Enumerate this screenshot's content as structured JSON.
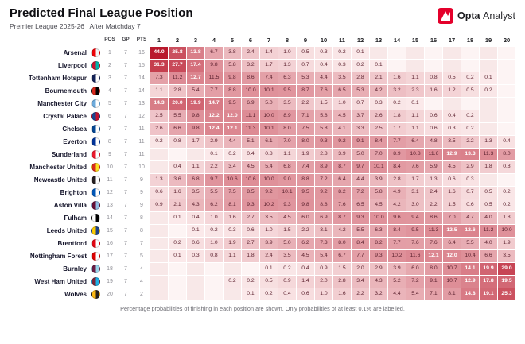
{
  "header": {
    "title": "Predicted Final League Position",
    "subtitle": "Premier League 2025-26 | After Matchday 7",
    "brand": {
      "bold": "Opta",
      "light": "Analyst"
    }
  },
  "footer": {
    "note": "Percentage probabilities of finishing in each position are shown. Only probabilities of at least 0.1% are labelled."
  },
  "colors": {
    "brand_red": "#e4002b",
    "heat_low": "#fdf1f1",
    "heat_high": "#b9192d",
    "stripe_even": "#f8e8e8",
    "stripe_odd": "#fdf4f4"
  },
  "chart_data": {
    "type": "heatmap",
    "title": "Predicted Final League Position",
    "subtitle": "Premier League 2025-26 | After Matchday 7",
    "stat_headers": [
      "POS",
      "GP",
      "PTS"
    ],
    "columns": [
      "1",
      "2",
      "3",
      "4",
      "5",
      "6",
      "7",
      "8",
      "9",
      "10",
      "11",
      "12",
      "13",
      "14",
      "15",
      "16",
      "17",
      "18",
      "19",
      "20"
    ],
    "value_unit": "percent",
    "rows": [
      {
        "team": "Arsenal",
        "pos": "1",
        "gp": "7",
        "pts": "16",
        "crest": [
          "#ef0107",
          "#f5f5f5"
        ],
        "probs": [
          "44.0",
          "25.8",
          "13.8",
          "6.7",
          "3.8",
          "2.4",
          "1.4",
          "1.0",
          "0.5",
          "0.3",
          "0.2",
          "0.1",
          "",
          "",
          "",
          "",
          "",
          "",
          "",
          ""
        ]
      },
      {
        "team": "Liverpool",
        "pos": "2",
        "gp": "7",
        "pts": "15",
        "crest": [
          "#c8102e",
          "#00b2a9"
        ],
        "probs": [
          "31.3",
          "27.7",
          "17.4",
          "9.8",
          "5.8",
          "3.2",
          "1.7",
          "1.3",
          "0.7",
          "0.4",
          "0.3",
          "0.2",
          "0.1",
          "",
          "",
          "",
          "",
          "",
          "",
          ""
        ]
      },
      {
        "team": "Tottenham Hotspur",
        "pos": "3",
        "gp": "7",
        "pts": "14",
        "crest": [
          "#132257",
          "#ffffff"
        ],
        "probs": [
          "7.3",
          "11.2",
          "12.7",
          "11.5",
          "9.8",
          "8.6",
          "7.4",
          "6.3",
          "5.3",
          "4.4",
          "3.5",
          "2.8",
          "2.1",
          "1.6",
          "1.1",
          "0.8",
          "0.5",
          "0.2",
          "0.1",
          ""
        ]
      },
      {
        "team": "Bournemouth",
        "pos": "4",
        "gp": "7",
        "pts": "14",
        "crest": [
          "#da291c",
          "#000000"
        ],
        "probs": [
          "1.1",
          "2.8",
          "5.4",
          "7.7",
          "8.8",
          "10.0",
          "10.1",
          "9.5",
          "8.7",
          "7.6",
          "6.5",
          "5.3",
          "4.2",
          "3.2",
          "2.3",
          "1.6",
          "1.2",
          "0.5",
          "0.2",
          ""
        ]
      },
      {
        "team": "Manchester City",
        "pos": "5",
        "gp": "7",
        "pts": "13",
        "crest": [
          "#6cabdd",
          "#ffffff"
        ],
        "probs": [
          "14.3",
          "20.0",
          "19.9",
          "14.7",
          "9.5",
          "6.9",
          "5.0",
          "3.5",
          "2.2",
          "1.5",
          "1.0",
          "0.7",
          "0.3",
          "0.2",
          "0.1",
          "",
          "",
          "",
          "",
          ""
        ]
      },
      {
        "team": "Crystal Palace",
        "pos": "6",
        "gp": "7",
        "pts": "12",
        "crest": [
          "#1b458f",
          "#c4122e"
        ],
        "probs": [
          "2.5",
          "5.5",
          "9.8",
          "12.2",
          "12.0",
          "11.1",
          "10.0",
          "8.9",
          "7.1",
          "5.8",
          "4.5",
          "3.7",
          "2.6",
          "1.8",
          "1.1",
          "0.6",
          "0.4",
          "0.2",
          "",
          ""
        ]
      },
      {
        "team": "Chelsea",
        "pos": "7",
        "gp": "7",
        "pts": "11",
        "crest": [
          "#034694",
          "#ffffff"
        ],
        "probs": [
          "2.6",
          "6.6",
          "9.8",
          "12.4",
          "12.1",
          "11.3",
          "10.1",
          "8.0",
          "7.5",
          "5.8",
          "4.1",
          "3.3",
          "2.5",
          "1.7",
          "1.1",
          "0.6",
          "0.3",
          "0.2",
          "",
          ""
        ]
      },
      {
        "team": "Everton",
        "pos": "8",
        "gp": "7",
        "pts": "11",
        "crest": [
          "#003399",
          "#ffffff"
        ],
        "probs": [
          "0.2",
          "0.8",
          "1.7",
          "2.9",
          "4.4",
          "5.1",
          "6.1",
          "7.0",
          "8.0",
          "9.3",
          "9.2",
          "9.1",
          "8.4",
          "7.7",
          "6.4",
          "4.8",
          "3.5",
          "2.2",
          "1.3",
          "0.4"
        ]
      },
      {
        "team": "Sunderland",
        "pos": "9",
        "gp": "7",
        "pts": "11",
        "crest": [
          "#eb172b",
          "#ffffff"
        ],
        "probs": [
          "",
          "",
          "",
          "0.1",
          "0.2",
          "0.4",
          "0.8",
          "1.1",
          "1.9",
          "2.8",
          "3.9",
          "5.0",
          "7.0",
          "8.9",
          "10.8",
          "11.6",
          "12.9",
          "13.3",
          "11.3",
          "8.0"
        ]
      },
      {
        "team": "Manchester United",
        "pos": "10",
        "gp": "7",
        "pts": "10",
        "crest": [
          "#da291c",
          "#fbe122"
        ],
        "probs": [
          "",
          "0.4",
          "1.1",
          "2.2",
          "3.4",
          "4.5",
          "5.4",
          "6.8",
          "7.4",
          "8.9",
          "8.7",
          "9.7",
          "10.1",
          "8.4",
          "7.6",
          "5.9",
          "4.5",
          "2.9",
          "1.8",
          "0.8"
        ]
      },
      {
        "team": "Newcastle United",
        "pos": "11",
        "gp": "7",
        "pts": "9",
        "crest": [
          "#241f20",
          "#ffffff"
        ],
        "probs": [
          "1.3",
          "3.6",
          "6.8",
          "9.7",
          "10.6",
          "10.6",
          "10.0",
          "9.0",
          "8.8",
          "7.2",
          "6.4",
          "4.4",
          "3.9",
          "2.8",
          "1.7",
          "1.3",
          "0.6",
          "0.3",
          "",
          ""
        ]
      },
      {
        "team": "Brighton",
        "pos": "12",
        "gp": "7",
        "pts": "9",
        "crest": [
          "#0057b8",
          "#ffffff"
        ],
        "probs": [
          "0.6",
          "1.6",
          "3.5",
          "5.5",
          "7.5",
          "8.5",
          "9.2",
          "10.1",
          "9.5",
          "9.2",
          "8.2",
          "7.2",
          "5.8",
          "4.9",
          "3.1",
          "2.4",
          "1.6",
          "0.7",
          "0.5",
          "0.2"
        ]
      },
      {
        "team": "Aston Villa",
        "pos": "13",
        "gp": "7",
        "pts": "9",
        "crest": [
          "#670e36",
          "#95bfe5"
        ],
        "probs": [
          "0.9",
          "2.1",
          "4.3",
          "6.2",
          "8.1",
          "9.3",
          "10.2",
          "9.3",
          "9.8",
          "8.8",
          "7.6",
          "6.5",
          "4.5",
          "4.2",
          "3.0",
          "2.2",
          "1.5",
          "0.6",
          "0.5",
          "0.2"
        ]
      },
      {
        "team": "Fulham",
        "pos": "14",
        "gp": "7",
        "pts": "8",
        "crest": [
          "#ffffff",
          "#000000"
        ],
        "probs": [
          "",
          "0.1",
          "0.4",
          "1.0",
          "1.6",
          "2.7",
          "3.5",
          "4.5",
          "6.0",
          "6.9",
          "8.7",
          "9.3",
          "10.0",
          "9.6",
          "9.4",
          "8.6",
          "7.0",
          "4.7",
          "4.0",
          "1.8"
        ]
      },
      {
        "team": "Leeds United",
        "pos": "15",
        "gp": "7",
        "pts": "8",
        "crest": [
          "#ffcd00",
          "#1d428a"
        ],
        "probs": [
          "",
          "",
          "0.1",
          "0.2",
          "0.3",
          "0.6",
          "1.0",
          "1.5",
          "2.2",
          "3.1",
          "4.2",
          "5.5",
          "6.3",
          "8.4",
          "9.5",
          "11.3",
          "12.5",
          "12.6",
          "11.2",
          "10.0"
        ]
      },
      {
        "team": "Brentford",
        "pos": "16",
        "gp": "7",
        "pts": "7",
        "crest": [
          "#e30613",
          "#ffffff"
        ],
        "probs": [
          "",
          "0.2",
          "0.6",
          "1.0",
          "1.9",
          "2.7",
          "3.9",
          "5.0",
          "6.2",
          "7.3",
          "8.0",
          "8.4",
          "8.2",
          "7.7",
          "7.6",
          "7.6",
          "6.4",
          "5.5",
          "4.0",
          "1.9"
        ]
      },
      {
        "team": "Nottingham Forest",
        "pos": "17",
        "gp": "7",
        "pts": "5",
        "crest": [
          "#dd0000",
          "#ffffff"
        ],
        "probs": [
          "",
          "0.1",
          "0.3",
          "0.8",
          "1.1",
          "1.8",
          "2.4",
          "3.5",
          "4.5",
          "5.4",
          "6.7",
          "7.7",
          "9.3",
          "10.2",
          "11.6",
          "12.1",
          "12.0",
          "10.4",
          "6.6",
          "3.5"
        ]
      },
      {
        "team": "Burnley",
        "pos": "18",
        "gp": "7",
        "pts": "4",
        "crest": [
          "#6c1d45",
          "#99d6ea"
        ],
        "probs": [
          "",
          "",
          "",
          "",
          "",
          "",
          "0.1",
          "0.2",
          "0.4",
          "0.9",
          "1.5",
          "2.0",
          "2.9",
          "3.9",
          "6.0",
          "8.0",
          "10.7",
          "14.1",
          "19.9",
          "29.0"
        ]
      },
      {
        "team": "West Ham United",
        "pos": "19",
        "gp": "7",
        "pts": "4",
        "crest": [
          "#7a263a",
          "#1bb1e7"
        ],
        "probs": [
          "",
          "",
          "",
          "",
          "0.2",
          "0.2",
          "0.5",
          "0.9",
          "1.4",
          "2.0",
          "2.8",
          "3.4",
          "4.3",
          "5.2",
          "7.2",
          "9.1",
          "10.7",
          "12.9",
          "17.8",
          "19.5"
        ]
      },
      {
        "team": "Wolves",
        "pos": "20",
        "gp": "7",
        "pts": "2",
        "crest": [
          "#fdb913",
          "#231f20"
        ],
        "probs": [
          "",
          "",
          "",
          "",
          "",
          "0.1",
          "0.2",
          "0.4",
          "0.6",
          "1.0",
          "1.6",
          "2.2",
          "3.2",
          "4.4",
          "5.4",
          "7.1",
          "8.1",
          "14.8",
          "19.1",
          "25.3"
        ]
      }
    ]
  }
}
